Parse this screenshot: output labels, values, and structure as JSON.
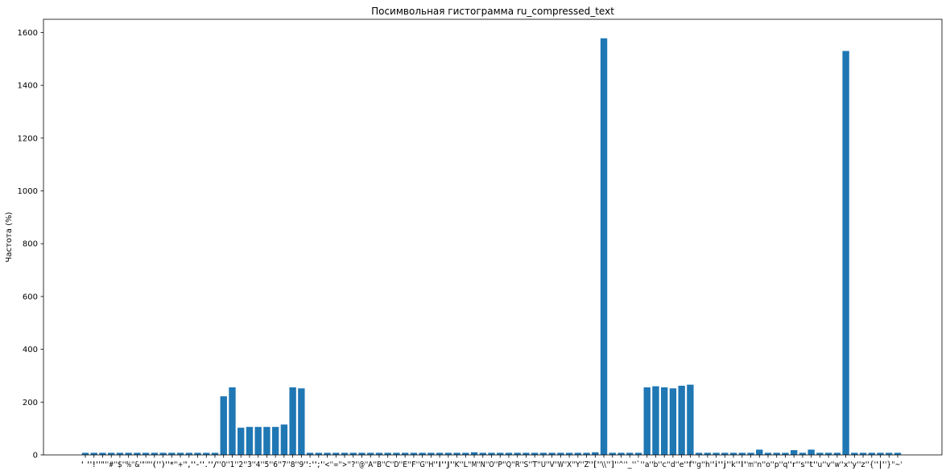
{
  "chart_data": {
    "type": "bar",
    "title": "Посимвольная гистограмма ru_compressed_text",
    "xlabel": "",
    "ylabel": "Частота (%)",
    "ylim": [
      0,
      1650
    ],
    "yticks": [
      0,
      200,
      400,
      600,
      800,
      1000,
      1200,
      1400,
      1600
    ],
    "grid": false,
    "bar_color": "#1f77b4",
    "categories": [
      "' '",
      "'!'",
      "'\"'",
      "'#'",
      "'$'",
      "'%'",
      "'&'",
      "\"'\"",
      "'('",
      "')'",
      "'*'",
      "'+'",
      "','",
      "'-'",
      "'.'",
      "'/'",
      "'0'",
      "'1'",
      "'2'",
      "'3'",
      "'4'",
      "'5'",
      "'6'",
      "'7'",
      "'8'",
      "'9'",
      "':'",
      "';'",
      "'<'",
      "'='",
      "'>'",
      "'?'",
      "'@'",
      "'A'",
      "'B'",
      "'C'",
      "'D'",
      "'E'",
      "'F'",
      "'G'",
      "'H'",
      "'I'",
      "'J'",
      "'K'",
      "'L'",
      "'M'",
      "'N'",
      "'O'",
      "'P'",
      "'Q'",
      "'R'",
      "'S'",
      "'T'",
      "'U'",
      "'V'",
      "'W'",
      "'X'",
      "'Y'",
      "'Z'",
      "'['",
      "'\\\\'",
      "']'",
      "'^'",
      "'_'",
      "'`'",
      "'a'",
      "'b'",
      "'c'",
      "'d'",
      "'e'",
      "'f'",
      "'g'",
      "'h'",
      "'i'",
      "'j'",
      "'k'",
      "'l'",
      "'m'",
      "'n'",
      "'o'",
      "'p'",
      "'q'",
      "'r'",
      "'s'",
      "'t'",
      "'u'",
      "'v'",
      "'w'",
      "'x'",
      "'y'",
      "'z'",
      "'{'",
      "'|'",
      "'}'",
      "'~'"
    ],
    "values": [
      8,
      8,
      8,
      8,
      8,
      8,
      8,
      8,
      8,
      8,
      8,
      8,
      8,
      8,
      8,
      8,
      222,
      256,
      103,
      106,
      106,
      106,
      106,
      115,
      256,
      252,
      8,
      8,
      8,
      8,
      8,
      8,
      8,
      8,
      8,
      8,
      8,
      8,
      8,
      8,
      8,
      8,
      8,
      8,
      8,
      10,
      8,
      8,
      8,
      8,
      8,
      8,
      8,
      8,
      8,
      8,
      8,
      8,
      8,
      10,
      1578,
      8,
      8,
      8,
      8,
      256,
      260,
      256,
      252,
      262,
      266,
      8,
      8,
      8,
      8,
      8,
      8,
      8,
      20,
      8,
      8,
      8,
      18,
      8,
      20,
      8,
      8,
      8,
      1530,
      8,
      8,
      8,
      8,
      8,
      8
    ]
  }
}
